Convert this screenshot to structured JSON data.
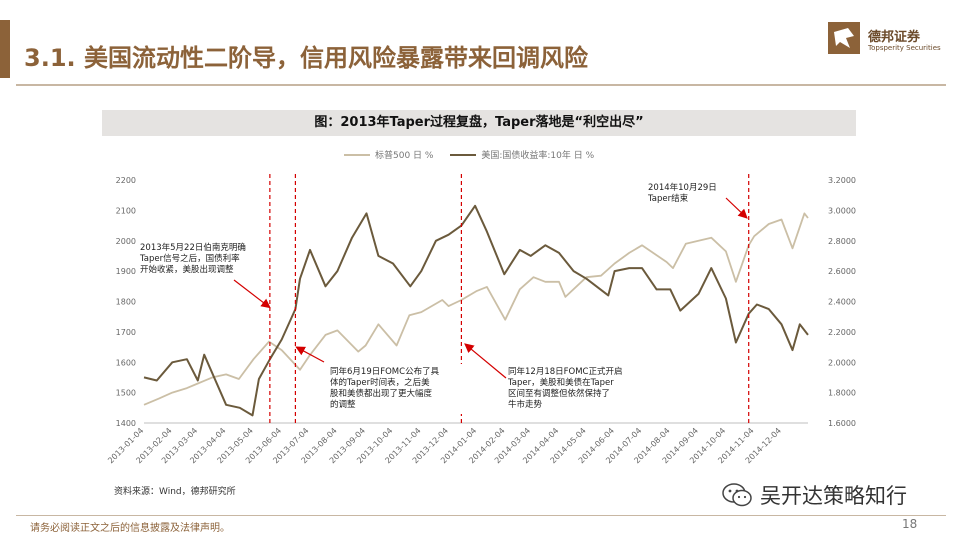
{
  "slide": {
    "title": "3.1. 美国流动性二阶导，信用风险暴露带来回调风险",
    "logo_cn": "德邦证券",
    "logo_en": "Topsperity Securities",
    "source": "资料来源：Wind，德邦研究所",
    "watermark": "吴开达策略知行",
    "disclaimer": "请务必阅读正文之后的信息披露及法律声明。",
    "page_number": "18",
    "brand_color": "#8c6239"
  },
  "chart_data": {
    "type": "line",
    "title": "图：2013年Taper过程复盘，Taper落地是“利空出尽”",
    "x_ticks": [
      "2013-01-04",
      "2013-02-04",
      "2013-03-04",
      "2013-04-04",
      "2013-05-04",
      "2013-06-04",
      "2013-07-04",
      "2013-08-04",
      "2013-09-04",
      "2013-10-04",
      "2013-11-04",
      "2013-12-04",
      "2014-01-04",
      "2014-02-04",
      "2014-03-04",
      "2014-04-04",
      "2014-05-04",
      "2014-06-04",
      "2014-07-04",
      "2014-08-04",
      "2014-09-04",
      "2014-10-04",
      "2014-11-04",
      "2014-12-04"
    ],
    "y_left": {
      "min": 1400,
      "max": 2200,
      "ticks": [
        "1400",
        "1500",
        "1600",
        "1700",
        "1800",
        "1900",
        "2000",
        "2100",
        "2200"
      ]
    },
    "y_right": {
      "min": 1.6,
      "max": 3.2,
      "ticks": [
        "1.6000",
        "1.8000",
        "2.0000",
        "2.2000",
        "2.4000",
        "2.6000",
        "2.8000",
        "3.0000",
        "3.2000"
      ]
    },
    "series": [
      {
        "name": "标普500  日  %",
        "axis": "left",
        "color": "#cbbfa6",
        "points": [
          [
            "2013-01-04",
            1460
          ],
          [
            "2013-01-20",
            1480
          ],
          [
            "2013-02-04",
            1500
          ],
          [
            "2013-02-20",
            1515
          ],
          [
            "2013-03-04",
            1530
          ],
          [
            "2013-03-20",
            1550
          ],
          [
            "2013-04-04",
            1560
          ],
          [
            "2013-04-18",
            1545
          ],
          [
            "2013-05-04",
            1610
          ],
          [
            "2013-05-21",
            1668
          ],
          [
            "2013-06-04",
            1640
          ],
          [
            "2013-06-24",
            1575
          ],
          [
            "2013-07-04",
            1620
          ],
          [
            "2013-07-22",
            1690
          ],
          [
            "2013-08-04",
            1705
          ],
          [
            "2013-08-27",
            1635
          ],
          [
            "2013-09-04",
            1655
          ],
          [
            "2013-09-18",
            1725
          ],
          [
            "2013-10-08",
            1655
          ],
          [
            "2013-10-22",
            1755
          ],
          [
            "2013-11-04",
            1765
          ],
          [
            "2013-11-27",
            1805
          ],
          [
            "2013-12-04",
            1785
          ],
          [
            "2013-12-18",
            1805
          ],
          [
            "2014-01-04",
            1835
          ],
          [
            "2014-01-15",
            1848
          ],
          [
            "2014-02-04",
            1740
          ],
          [
            "2014-02-20",
            1840
          ],
          [
            "2014-03-07",
            1880
          ],
          [
            "2014-03-20",
            1865
          ],
          [
            "2014-04-04",
            1865
          ],
          [
            "2014-04-11",
            1815
          ],
          [
            "2014-05-04",
            1880
          ],
          [
            "2014-05-20",
            1885
          ],
          [
            "2014-06-04",
            1925
          ],
          [
            "2014-06-20",
            1960
          ],
          [
            "2014-07-04",
            1985
          ],
          [
            "2014-07-31",
            1930
          ],
          [
            "2014-08-07",
            1910
          ],
          [
            "2014-08-21",
            1990
          ],
          [
            "2014-09-04",
            2000
          ],
          [
            "2014-09-18",
            2010
          ],
          [
            "2014-10-04",
            1965
          ],
          [
            "2014-10-15",
            1865
          ],
          [
            "2014-10-29",
            1985
          ],
          [
            "2014-11-04",
            2015
          ],
          [
            "2014-11-20",
            2055
          ],
          [
            "2014-12-04",
            2070
          ],
          [
            "2014-12-16",
            1975
          ],
          [
            "2014-12-29",
            2090
          ],
          [
            "2015-01-02",
            2075
          ]
        ]
      },
      {
        "name": "美国:国债收益率:10年  日  %",
        "axis": "right",
        "color": "#6b5a3c",
        "points": [
          [
            "2013-01-04",
            1.9
          ],
          [
            "2013-01-18",
            1.88
          ],
          [
            "2013-02-04",
            2.0
          ],
          [
            "2013-02-20",
            2.02
          ],
          [
            "2013-03-04",
            1.88
          ],
          [
            "2013-03-11",
            2.05
          ],
          [
            "2013-04-04",
            1.72
          ],
          [
            "2013-04-19",
            1.7
          ],
          [
            "2013-05-03",
            1.65
          ],
          [
            "2013-05-10",
            1.89
          ],
          [
            "2013-05-22",
            2.02
          ],
          [
            "2013-06-04",
            2.15
          ],
          [
            "2013-06-19",
            2.35
          ],
          [
            "2013-06-24",
            2.55
          ],
          [
            "2013-07-05",
            2.74
          ],
          [
            "2013-07-22",
            2.5
          ],
          [
            "2013-08-04",
            2.6
          ],
          [
            "2013-08-20",
            2.82
          ],
          [
            "2013-09-05",
            2.98
          ],
          [
            "2013-09-18",
            2.7
          ],
          [
            "2013-10-04",
            2.65
          ],
          [
            "2013-10-23",
            2.5
          ],
          [
            "2013-11-04",
            2.6
          ],
          [
            "2013-11-20",
            2.8
          ],
          [
            "2013-12-04",
            2.84
          ],
          [
            "2013-12-18",
            2.9
          ],
          [
            "2014-01-02",
            3.03
          ],
          [
            "2014-01-15",
            2.86
          ],
          [
            "2014-02-03",
            2.58
          ],
          [
            "2014-02-20",
            2.74
          ],
          [
            "2014-03-04",
            2.7
          ],
          [
            "2014-03-20",
            2.77
          ],
          [
            "2014-04-04",
            2.72
          ],
          [
            "2014-04-20",
            2.6
          ],
          [
            "2014-05-04",
            2.55
          ],
          [
            "2014-05-28",
            2.44
          ],
          [
            "2014-06-04",
            2.6
          ],
          [
            "2014-06-20",
            2.62
          ],
          [
            "2014-07-04",
            2.62
          ],
          [
            "2014-07-20",
            2.48
          ],
          [
            "2014-08-04",
            2.48
          ],
          [
            "2014-08-15",
            2.34
          ],
          [
            "2014-09-04",
            2.45
          ],
          [
            "2014-09-18",
            2.62
          ],
          [
            "2014-10-04",
            2.42
          ],
          [
            "2014-10-15",
            2.13
          ],
          [
            "2014-10-29",
            2.32
          ],
          [
            "2014-11-07",
            2.38
          ],
          [
            "2014-11-20",
            2.35
          ],
          [
            "2014-12-04",
            2.25
          ],
          [
            "2014-12-16",
            2.08
          ],
          [
            "2014-12-24",
            2.25
          ],
          [
            "2015-01-02",
            2.18
          ]
        ]
      }
    ],
    "markers": [
      "2013-05-22",
      "2013-06-19",
      "2013-12-18",
      "2014-10-29"
    ],
    "annotations": [
      {
        "text": "2013年5月22日伯南克明确Taper信号之后，国债利率开始收紧，美股出现调整",
        "arrow_to": [
          "2013-05-22",
          1780
        ]
      },
      {
        "text": "同年6月19日FOMC公布了具体的Taper时间表，之后美股和美债都出现了更大幅度的调整",
        "arrow_to": [
          "2013-06-20",
          1650
        ]
      },
      {
        "text": "同年12月18日FOMC正式开启Taper，美股和美债在Taper区间至有调整但依然保持了牛市走势",
        "arrow_to": [
          "2013-12-22",
          1660
        ]
      },
      {
        "text": "2014年10月29日Taper结束",
        "arrow_to": [
          "2014-10-27",
          2075
        ]
      }
    ],
    "grid": false,
    "legend_position": "top"
  }
}
